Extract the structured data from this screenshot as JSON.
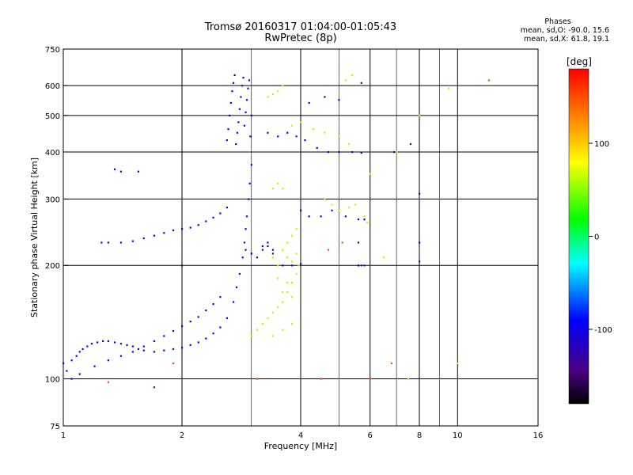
{
  "header": {
    "title_line1": "Tromsø 20160317 01:04:00-01:05:43",
    "title_line2": "RwPretec (8p)"
  },
  "phases": {
    "heading": "Phases",
    "line_o": "mean, sd,O: -90.0, 15.6",
    "line_x": "mean, sd,X:  61.8, 19.1"
  },
  "colorbar": {
    "unit": "[deg]",
    "ticks": [
      "100",
      "0",
      "-100"
    ],
    "range": [
      -180,
      180
    ],
    "tick_values": [
      100,
      0,
      -100
    ]
  },
  "chart_data": {
    "type": "scatter",
    "xlabel": "Frequency [MHz]",
    "ylabel": "Stationary phase Virtual Height [km]",
    "xscale": "log",
    "yscale": "log",
    "xlim": [
      1,
      16
    ],
    "ylim": [
      75,
      750
    ],
    "xticks": [
      1,
      2,
      4,
      8,
      16
    ],
    "xtick_labels": [
      "1",
      "2",
      "4",
      "6",
      "8",
      "10",
      "16"
    ],
    "xtick_label_values": [
      1,
      2,
      4,
      6,
      8,
      10,
      16
    ],
    "yticks": [
      75,
      100,
      200,
      300,
      400,
      500,
      600,
      750
    ],
    "ytick_labels": [
      "75",
      "100",
      "200",
      "300",
      "400",
      "500",
      "600",
      "750"
    ],
    "grid_x": [
      2,
      4,
      6,
      8,
      10
    ],
    "grid_y": [
      100,
      200,
      300,
      400,
      500,
      600
    ],
    "minor_x": [
      3,
      5,
      7,
      9
    ],
    "grid": true,
    "series": [
      {
        "color_phase": -100,
        "description_from_legend": "O-mode",
        "points": [
          [
            1.0,
            110
          ],
          [
            1.02,
            105
          ],
          [
            1.05,
            112
          ],
          [
            1.08,
            115
          ],
          [
            1.1,
            118
          ],
          [
            1.12,
            120
          ],
          [
            1.15,
            122
          ],
          [
            1.18,
            124
          ],
          [
            1.22,
            125
          ],
          [
            1.26,
            126
          ],
          [
            1.3,
            126
          ],
          [
            1.35,
            125
          ],
          [
            1.4,
            124
          ],
          [
            1.45,
            123
          ],
          [
            1.5,
            122
          ],
          [
            1.55,
            120
          ],
          [
            1.6,
            119
          ],
          [
            1.7,
            118
          ],
          [
            1.8,
            119
          ],
          [
            1.9,
            120
          ],
          [
            2.0,
            121
          ],
          [
            2.1,
            123
          ],
          [
            2.2,
            125
          ],
          [
            2.3,
            128
          ],
          [
            2.4,
            132
          ],
          [
            2.5,
            137
          ],
          [
            2.6,
            145
          ],
          [
            2.7,
            160
          ],
          [
            2.75,
            175
          ],
          [
            2.8,
            190
          ],
          [
            2.85,
            210
          ],
          [
            2.88,
            230
          ],
          [
            2.9,
            250
          ],
          [
            2.92,
            270
          ],
          [
            2.95,
            300
          ],
          [
            2.97,
            330
          ],
          [
            3.0,
            370
          ],
          [
            1.05,
            100
          ],
          [
            1.1,
            103
          ],
          [
            1.2,
            108
          ],
          [
            1.3,
            112
          ],
          [
            1.4,
            115
          ],
          [
            1.5,
            118
          ],
          [
            1.6,
            122
          ],
          [
            1.7,
            126
          ],
          [
            1.8,
            130
          ],
          [
            1.9,
            134
          ],
          [
            2.0,
            138
          ],
          [
            2.1,
            142
          ],
          [
            2.2,
            146
          ],
          [
            2.3,
            152
          ],
          [
            2.4,
            158
          ],
          [
            2.5,
            165
          ],
          [
            1.25,
            230
          ],
          [
            1.3,
            230
          ],
          [
            1.4,
            230
          ],
          [
            1.5,
            232
          ],
          [
            1.6,
            236
          ],
          [
            1.7,
            240
          ],
          [
            1.8,
            244
          ],
          [
            1.9,
            248
          ],
          [
            2.0,
            250
          ],
          [
            2.1,
            252
          ],
          [
            2.2,
            256
          ],
          [
            2.3,
            262
          ],
          [
            2.4,
            268
          ],
          [
            2.5,
            275
          ],
          [
            2.6,
            285
          ],
          [
            2.6,
            430
          ],
          [
            2.62,
            460
          ],
          [
            2.64,
            500
          ],
          [
            2.66,
            540
          ],
          [
            2.68,
            580
          ],
          [
            2.7,
            610
          ],
          [
            2.72,
            640
          ],
          [
            2.74,
            420
          ],
          [
            2.76,
            450
          ],
          [
            2.78,
            480
          ],
          [
            2.8,
            520
          ],
          [
            2.82,
            560
          ],
          [
            2.84,
            600
          ],
          [
            2.86,
            630
          ],
          [
            2.88,
            470
          ],
          [
            2.9,
            510
          ],
          [
            2.92,
            550
          ],
          [
            2.94,
            590
          ],
          [
            2.96,
            620
          ],
          [
            2.98,
            440
          ],
          [
            3.0,
            500
          ],
          [
            1.35,
            360
          ],
          [
            1.4,
            355
          ],
          [
            1.55,
            355
          ],
          [
            3.3,
            450
          ],
          [
            3.5,
            440
          ],
          [
            3.7,
            450
          ],
          [
            3.9,
            440
          ],
          [
            4.1,
            430
          ],
          [
            4.4,
            410
          ],
          [
            4.7,
            400
          ],
          [
            5.0,
            400
          ],
          [
            5.4,
            400
          ],
          [
            5.7,
            398
          ],
          [
            3.6,
            200
          ],
          [
            3.8,
            200
          ],
          [
            4.0,
            202
          ],
          [
            4.0,
            280
          ],
          [
            4.2,
            270
          ],
          [
            4.5,
            270
          ],
          [
            4.8,
            280
          ],
          [
            5.2,
            270
          ],
          [
            5.6,
            265
          ],
          [
            5.8,
            265
          ],
          [
            3.3,
            230
          ],
          [
            3.2,
            225
          ],
          [
            3.4,
            220
          ],
          [
            3.0,
            215
          ],
          [
            3.1,
            210
          ],
          [
            5.7,
            200
          ],
          [
            5.6,
            200
          ],
          [
            5.8,
            200
          ],
          [
            6.9,
            400
          ],
          [
            8.0,
            310
          ],
          [
            8.0,
            230
          ],
          [
            8.0,
            205
          ],
          [
            4.2,
            540
          ],
          [
            4.6,
            560
          ],
          [
            5.0,
            550
          ],
          [
            5.7,
            610
          ]
        ]
      },
      {
        "color_phase": 60,
        "description_from_legend": "X-mode",
        "points": [
          [
            3.0,
            130
          ],
          [
            3.1,
            135
          ],
          [
            3.2,
            140
          ],
          [
            3.3,
            145
          ],
          [
            3.4,
            150
          ],
          [
            3.5,
            155
          ],
          [
            3.6,
            160
          ],
          [
            3.7,
            170
          ],
          [
            3.8,
            180
          ],
          [
            3.9,
            190
          ],
          [
            3.95,
            200
          ],
          [
            3.4,
            130
          ],
          [
            3.6,
            135
          ],
          [
            3.8,
            140
          ],
          [
            3.6,
            220
          ],
          [
            3.7,
            230
          ],
          [
            3.8,
            240
          ],
          [
            3.9,
            250
          ],
          [
            3.7,
            210
          ],
          [
            3.8,
            205
          ],
          [
            3.9,
            215
          ],
          [
            3.4,
            320
          ],
          [
            3.5,
            330
          ],
          [
            3.6,
            320
          ],
          [
            3.4,
            570
          ],
          [
            3.5,
            580
          ],
          [
            3.6,
            600
          ],
          [
            3.3,
            560
          ],
          [
            3.8,
            470
          ],
          [
            4.0,
            480
          ],
          [
            4.3,
            460
          ],
          [
            4.6,
            450
          ],
          [
            5.0,
            440
          ],
          [
            5.3,
            420
          ],
          [
            4.6,
            300
          ],
          [
            4.8,
            290
          ],
          [
            5.0,
            280
          ],
          [
            5.3,
            285
          ],
          [
            5.5,
            290
          ],
          [
            5.8,
            270
          ],
          [
            5.9,
            260
          ],
          [
            3.6,
            170
          ],
          [
            3.7,
            180
          ],
          [
            3.8,
            165
          ],
          [
            3.5,
            185
          ],
          [
            3.5,
            200
          ],
          [
            3.4,
            210
          ],
          [
            5.2,
            620
          ],
          [
            5.4,
            640
          ],
          [
            6.0,
            350
          ],
          [
            6.5,
            210
          ],
          [
            7.0,
            400
          ],
          [
            7.5,
            100
          ],
          [
            9.5,
            590
          ],
          [
            8.0,
            500
          ],
          [
            10.0,
            110
          ]
        ]
      },
      {
        "color_phase": -150,
        "description_from_legend": "low phase",
        "points": [
          [
            2.9,
            220
          ],
          [
            3.0,
            215
          ],
          [
            3.2,
            220
          ],
          [
            3.3,
            225
          ],
          [
            3.4,
            215
          ],
          [
            1.7,
            95
          ],
          [
            2.0,
            200
          ],
          [
            5.6,
            230
          ],
          [
            5.6,
            200
          ],
          [
            7.6,
            420
          ]
        ]
      },
      {
        "color_phase": 150,
        "description_from_legend": "high phase",
        "points": [
          [
            4.5,
            100
          ],
          [
            3.1,
            100
          ],
          [
            6.0,
            100
          ],
          [
            12.0,
            620
          ],
          [
            6.8,
            110
          ],
          [
            1.9,
            110
          ],
          [
            1.3,
            98
          ],
          [
            4.7,
            220
          ],
          [
            5.1,
            230
          ]
        ]
      }
    ]
  }
}
